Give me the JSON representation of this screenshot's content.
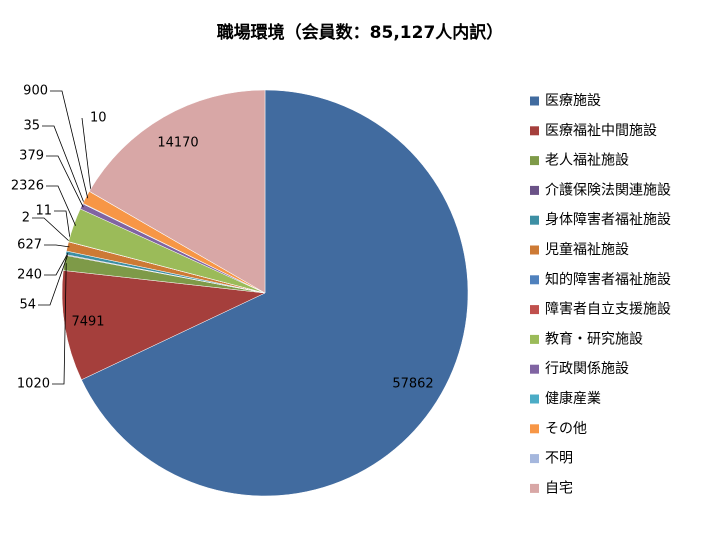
{
  "chart_data": {
    "type": "pie",
    "title": "職場環境（会員数：85,127人内訳）",
    "categories": [
      "医療施設",
      "医療福祉中間施設",
      "老人福祉施設",
      "介護保険法関連施設",
      "身体障害者福祉施設",
      "児童福祉施設",
      "知的障害者福祉施設",
      "障害者自立支援施設",
      "教育・研究施設",
      "行政関係施設",
      "健康産業",
      "その他",
      "不明",
      "自宅"
    ],
    "values": [
      57862,
      7491,
      1020,
      54,
      240,
      627,
      2,
      11,
      2326,
      379,
      35,
      900,
      10,
      14170
    ],
    "colors": [
      "#416b9f",
      "#a53f3c",
      "#7e9a48",
      "#6a5287",
      "#3d8fa4",
      "#cd7a35",
      "#4f81bd",
      "#c0504d",
      "#9bbb59",
      "#8064a2",
      "#4bacc6",
      "#f79646",
      "#a5b7dd",
      "#d8a7a6"
    ],
    "legend": "right"
  }
}
